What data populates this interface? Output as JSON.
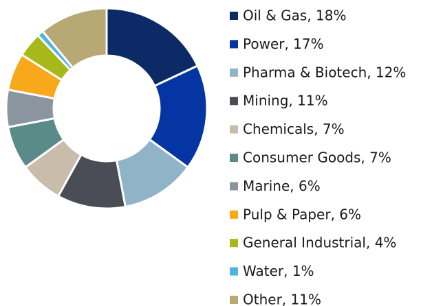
{
  "chart_data": {
    "type": "donut",
    "categories": [
      "Oil & Gas, 18%",
      "Power, 17%",
      "Pharma & Biotech, 12%",
      "Mining, 11%",
      "Chemicals, 7%",
      "Consumer Goods, 7%",
      "Marine, 6%",
      "Pulp & Paper, 6%",
      "General Industrial, 4%",
      "Water, 1%",
      "Other, 11%"
    ],
    "values": [
      18,
      17,
      12,
      11,
      7,
      7,
      6,
      6,
      4,
      1,
      11
    ],
    "colors": [
      "#0b2a66",
      "#0535a3",
      "#8fb4c7",
      "#4a4d55",
      "#c9bcab",
      "#5a8b88",
      "#8b95a0",
      "#f7a81b",
      "#a9b819",
      "#4fb4e2",
      "#b8a974"
    ],
    "legend": "right"
  }
}
